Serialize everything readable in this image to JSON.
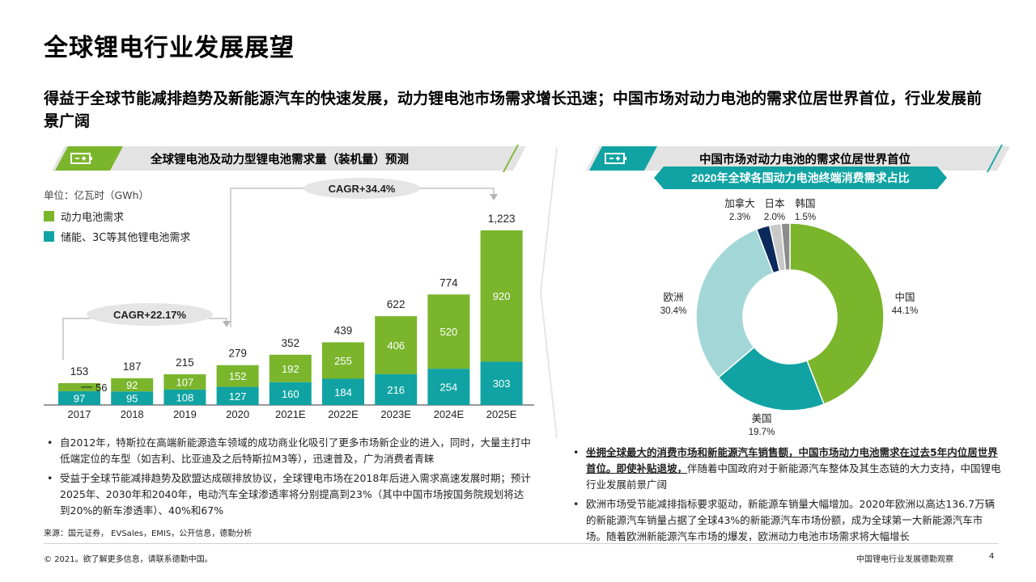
{
  "page": {
    "title": "全球锂电行业发展展望",
    "subtitle": "得益于全球节能减排趋势及新能源汽车的快速发展，动力锂电池市场需求增长迅速；中国市场对动力电池的需求位居世界首位，行业发展前景广阔"
  },
  "left_panel": {
    "banner_title": "全球锂电池及动力型锂电池需求量（装机量）预测",
    "unit_label": "单位：亿瓦时（GWh）",
    "legend": [
      {
        "label": "动力电池需求",
        "color": "#7ab52c"
      },
      {
        "label": "储能、3C等其他锂电池需求",
        "color": "#11a3a3"
      }
    ],
    "cagr_1": "CAGR+22.17%",
    "cagr_2": "CAGR+34.4%",
    "bullets": [
      "自2012年，特斯拉在高端新能源造车领域的成功商业化吸引了更多市场新企业的进入，同时，大量主打中低端定位的车型（如吉利、比亚迪及之后特斯拉M3等），迅速普及，广为消费者青睐",
      "受益于全球节能减排趋势及欧盟达成碳排放协议，全球锂电市场在2018年后进入需求高速发展时期；预计2025年、2030年和2040年，电动汽车全球渗透率将分别提高到23%（其中中国市场按国务院规划将达到20%的新车渗透率）、40%和67%"
    ]
  },
  "right_panel": {
    "banner_title": "中国市场对动力电池的需求位居世界首位",
    "pie_title": "2020年全球各国动力电池终端消费需求占比",
    "bullet_1_bold": "坐拥全球最大的消费市场和新能源汽车销售额，中国市场动力电池需求在过去5年内位居世界首位。即使补贴退坡，",
    "bullet_1_rest": "伴随着中国政府对于新能源汽车整体及其生态链的大力支持，中国锂电行业发展前景广阔",
    "bullet_2": "欧洲市场受节能减排指标要求驱动，新能源车销量大幅增加。2020年欧洲以高达136.7万辆的新能源汽车销量占据了全球43%的新能源汽车市场份额，成为全球第一大新能源汽车市场。随着欧洲新能源汽车市场的爆发，欧洲动力电池市场需求将大幅增长"
  },
  "footer": {
    "source": "来源：国元证券， EVSales，EMIS，公开信息，德勤分析",
    "copyright": "© 2021。欲了解更多信息，请联系德勤中国。",
    "doc_title": "中国锂电行业发展德勤观察",
    "page_number": "4"
  },
  "colors": {
    "green": "#7ab52c",
    "teal": "#11a3a3",
    "light_teal": "#a3d7d7",
    "navy": "#0b2a5b",
    "light_gray": "#c9c9c9",
    "mid_gray": "#8c8c8c",
    "banner_gray": "#e3e3e3"
  },
  "chart_data": [
    {
      "type": "bar",
      "title": "全球锂电池及动力型锂电池需求量（装机量）预测",
      "ylabel": "亿瓦时（GWh）",
      "categories": [
        "2017",
        "2018",
        "2019",
        "2020",
        "2021E",
        "2022E",
        "2023E",
        "2024E",
        "2025E"
      ],
      "series": [
        {
          "name": "储能、3C等其他锂电池需求",
          "values": [
            97,
            95,
            108,
            127,
            160,
            184,
            216,
            254,
            303
          ]
        },
        {
          "name": "动力电池需求",
          "values": [
            56,
            92,
            107,
            152,
            192,
            255,
            406,
            520,
            920
          ]
        }
      ],
      "totals": [
        153,
        187,
        215,
        279,
        352,
        439,
        622,
        774,
        1223
      ],
      "total_labels": [
        "153",
        "187",
        "215",
        "279",
        "352",
        "439",
        "622",
        "774",
        "1,223"
      ],
      "stacked": true
    },
    {
      "type": "pie",
      "title": "2020年全球各国动力电池终端消费需求占比",
      "labels": [
        "中国",
        "美国",
        "欧洲",
        "加拿大",
        "日本",
        "韩国"
      ],
      "values": [
        44.1,
        19.7,
        30.4,
        2.3,
        2.0,
        1.5
      ],
      "value_labels": [
        "44.1%",
        "19.7%",
        "30.4%",
        "2.3%",
        "2.0%",
        "1.5%"
      ],
      "colors": [
        "#7ab52c",
        "#11a3a3",
        "#a3d7d7",
        "#0b2a5b",
        "#c9c9c9",
        "#8c8c8c"
      ]
    }
  ]
}
